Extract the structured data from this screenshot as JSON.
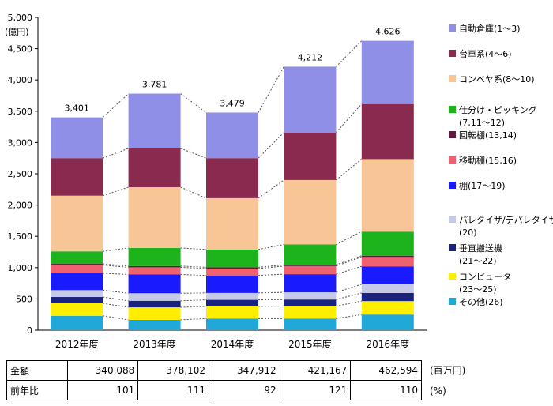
{
  "chart_data": {
    "type": "bar",
    "stacked": true,
    "unit_label": "(億円)",
    "categories": [
      "2012年度",
      "2013年度",
      "2014年度",
      "2015年度",
      "2016年度"
    ],
    "ylim": [
      0,
      5000
    ],
    "yticks": [
      "0",
      "500",
      "1,000",
      "1,500",
      "2,000",
      "2,500",
      "3,000",
      "3,500",
      "4,000",
      "4,500",
      "5,000"
    ],
    "totals": [
      "3,401",
      "3,781",
      "3,479",
      "4,212",
      "4,626"
    ],
    "legend_position": "right",
    "series": [
      {
        "name": "その他(26)",
        "color": "#1fa8d8",
        "values": [
          230,
          165,
          185,
          185,
          250
        ]
      },
      {
        "name": "コンピュータ(23〜25)",
        "color": "#ffee00",
        "values": [
          200,
          200,
          195,
          200,
          215
        ]
      },
      {
        "name": "垂直搬送機(21〜22)",
        "color": "#1a237e",
        "values": [
          100,
          105,
          105,
          105,
          130
        ]
      },
      {
        "name": "パレタイザ/デパレタイザ(20)",
        "color": "#c5cae9",
        "values": [
          110,
          120,
          110,
          115,
          140
        ]
      },
      {
        "name": "棚(17〜19)",
        "color": "#1a1aff",
        "values": [
          270,
          300,
          280,
          290,
          285
        ]
      },
      {
        "name": "移動棚(15,16)",
        "color": "#f06070",
        "values": [
          130,
          115,
          110,
          130,
          150
        ]
      },
      {
        "name": "回転棚(13,14)",
        "color": "#5c1a3c",
        "values": [
          20,
          20,
          20,
          20,
          20
        ]
      },
      {
        "name": "仕分け・ピッキング(7,11〜12)",
        "color": "#1db31d",
        "values": [
          200,
          290,
          285,
          325,
          385
        ]
      },
      {
        "name": "コンベヤ系(8〜10)",
        "color": "#f8c596",
        "values": [
          890,
          970,
          820,
          1030,
          1160
        ]
      },
      {
        "name": "台車系(4〜6)",
        "color": "#8a2a4e",
        "values": [
          600,
          620,
          640,
          760,
          880
        ]
      },
      {
        "name": "自動倉庫(1〜3)",
        "color": "#8f8fe8",
        "values": [
          651,
          876,
          729,
          1052,
          1011
        ]
      }
    ]
  },
  "legend": [
    {
      "text": "自動倉庫(1〜3)",
      "color": "#8f8fe8"
    },
    {
      "text": "台車系(4〜6)",
      "color": "#8a2a4e"
    },
    {
      "text": "コンベヤ系(8〜10)",
      "color": "#f8c596"
    },
    {
      "text": "仕分け・ピッキング",
      "text2": "(7,11〜12)",
      "color": "#1db31d"
    },
    {
      "text": "回転棚(13,14)",
      "color": "#5c1a3c"
    },
    {
      "text": "移動棚(15,16)",
      "color": "#f06070"
    },
    {
      "text": "棚(17〜19)",
      "color": "#1a1aff"
    },
    {
      "text": "パレタイザ/デパレタイザ",
      "text2": "(20)",
      "color": "#c5cae9"
    },
    {
      "text": "垂直搬送機",
      "text2": "(21〜22)",
      "color": "#1a237e"
    },
    {
      "text": "コンピュータ",
      "text2": "(23〜25)",
      "color": "#ffee00"
    },
    {
      "text": "その他(26)",
      "color": "#1fa8d8"
    }
  ],
  "table": {
    "rows": [
      {
        "label": "金額",
        "values": [
          "340,088",
          "378,102",
          "347,912",
          "421,167",
          "462,594"
        ],
        "unit": "(百万円)"
      },
      {
        "label": "前年比",
        "values": [
          "101",
          "111",
          "92",
          "121",
          "110"
        ],
        "unit": "(%)"
      }
    ]
  }
}
